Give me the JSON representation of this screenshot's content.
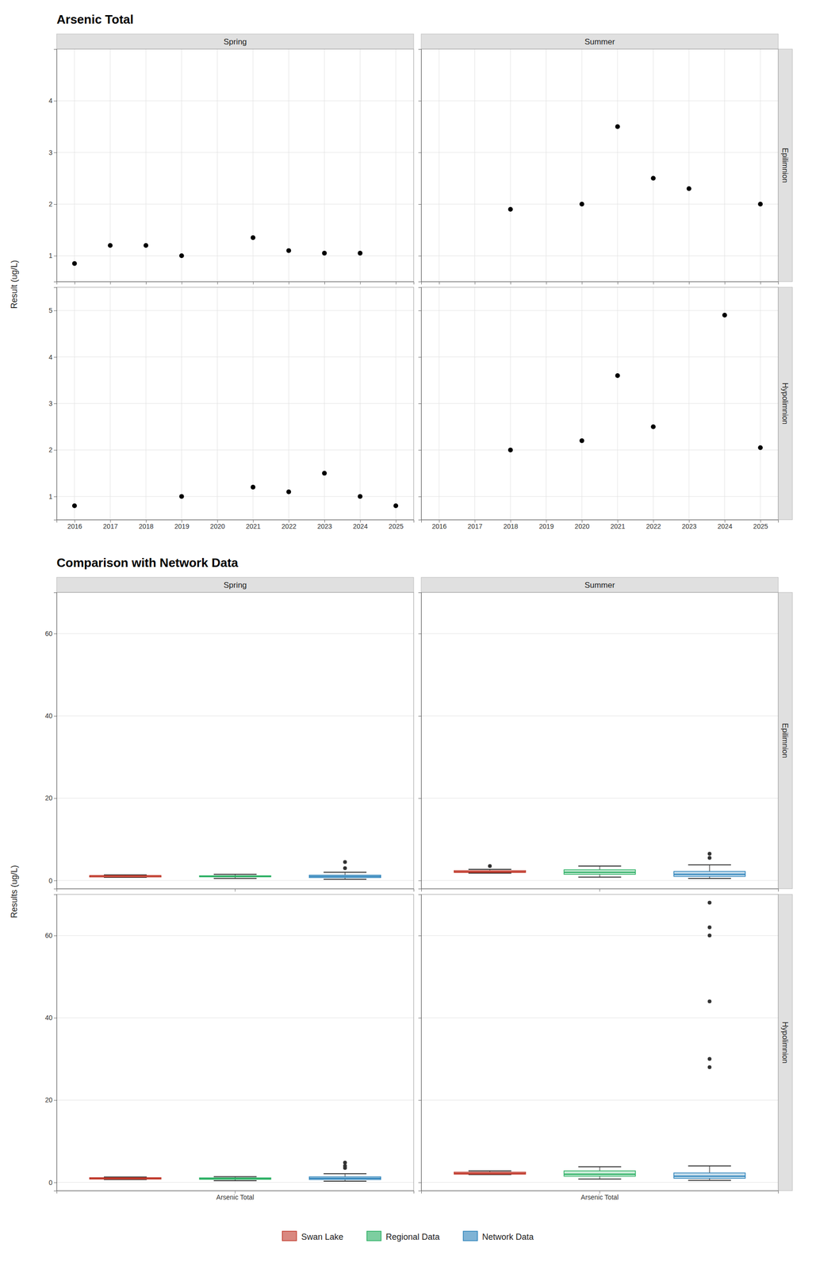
{
  "chart_data": [
    {
      "type": "scatter",
      "title": "Arsenic Total",
      "ylabel": "Result (ug/L)",
      "columns": [
        "Spring",
        "Summer"
      ],
      "rows": [
        {
          "name": "Epilimnion",
          "ylim": [
            0.5,
            5.0
          ],
          "yticks": [
            1,
            2,
            3,
            4
          ]
        },
        {
          "name": "Hypolimnion",
          "ylim": [
            0.5,
            5.5
          ],
          "yticks": [
            1,
            2,
            3,
            4,
            5
          ]
        }
      ],
      "xlim": [
        2015.5,
        2025.5
      ],
      "xticks": [
        2016,
        2017,
        2018,
        2019,
        2020,
        2021,
        2022,
        2023,
        2024,
        2025
      ],
      "color": "#000000",
      "grid": true,
      "panels": [
        [
          {
            "x": [
              2016,
              2017,
              2018,
              2019,
              2020,
              2021,
              2022,
              2023,
              2024,
              2025
            ],
            "values": [
              0.85,
              1.2,
              1.2,
              1.0,
              null,
              1.35,
              1.1,
              1.05,
              1.05,
              null
            ]
          },
          {
            "x": [
              2016,
              2017,
              2018,
              2019,
              2020,
              2021,
              2022,
              2023,
              2024,
              2025
            ],
            "values": [
              null,
              null,
              1.9,
              null,
              2.0,
              3.5,
              2.5,
              2.3,
              null,
              2.0
            ]
          }
        ],
        [
          {
            "x": [
              2016,
              2017,
              2018,
              2019,
              2020,
              2021,
              2022,
              2023,
              2024,
              2025
            ],
            "values": [
              0.8,
              null,
              null,
              1.0,
              null,
              1.2,
              1.1,
              1.5,
              1.0,
              0.8
            ]
          },
          {
            "x": [
              2016,
              2017,
              2018,
              2019,
              2020,
              2021,
              2022,
              2023,
              2024,
              2025
            ],
            "values": [
              null,
              null,
              2.0,
              null,
              2.2,
              3.6,
              2.5,
              null,
              4.9,
              2.05
            ]
          }
        ]
      ]
    },
    {
      "type": "box",
      "title": "Comparison with Network Data",
      "ylabel": "Results (ug/L)",
      "categories": [
        "Arsenic Total"
      ],
      "columns": [
        "Spring",
        "Summer"
      ],
      "rows": [
        "Epilimnion",
        "Hypolimnion"
      ],
      "ylim": [
        -2,
        70
      ],
      "yticks": [
        0,
        20,
        40,
        60
      ],
      "grid": true,
      "legend": "bottom",
      "series": [
        {
          "name": "Swan Lake",
          "color": "#c0392b"
        },
        {
          "name": "Regional Data",
          "color": "#27ae60"
        },
        {
          "name": "Network Data",
          "color": "#2980b9"
        }
      ],
      "panels": [
        [
          [
            {
              "median": 1.1,
              "q1": 0.85,
              "q3": 1.2,
              "whislo": 0.75,
              "whishi": 1.35,
              "fliers": []
            },
            {
              "median": 1.0,
              "q1": 0.9,
              "q3": 1.15,
              "whislo": 0.5,
              "whishi": 1.5,
              "fliers": []
            },
            {
              "median": 1.0,
              "q1": 0.7,
              "q3": 1.3,
              "whislo": 0.3,
              "whishi": 2.0,
              "fliers": [
                3.0,
                4.5
              ]
            }
          ],
          [
            {
              "median": 2.1,
              "q1": 1.95,
              "q3": 2.4,
              "whislo": 1.8,
              "whishi": 2.7,
              "fliers": [
                3.5
              ]
            },
            {
              "median": 2.0,
              "q1": 1.5,
              "q3": 2.6,
              "whislo": 0.8,
              "whishi": 3.5,
              "fliers": []
            },
            {
              "median": 1.5,
              "q1": 1.0,
              "q3": 2.2,
              "whislo": 0.5,
              "whishi": 3.8,
              "fliers": [
                5.5,
                6.5
              ]
            }
          ]
        ],
        [
          [
            {
              "median": 1.0,
              "q1": 0.8,
              "q3": 1.15,
              "whislo": 0.7,
              "whishi": 1.3,
              "fliers": []
            },
            {
              "median": 0.9,
              "q1": 0.75,
              "q3": 1.1,
              "whislo": 0.4,
              "whishi": 1.4,
              "fliers": []
            },
            {
              "median": 1.0,
              "q1": 0.7,
              "q3": 1.35,
              "whislo": 0.3,
              "whishi": 2.1,
              "fliers": [
                3.5,
                4.0,
                4.8
              ]
            }
          ],
          [
            {
              "median": 2.2,
              "q1": 2.0,
              "q3": 2.5,
              "whislo": 1.9,
              "whishi": 2.8,
              "fliers": []
            },
            {
              "median": 2.0,
              "q1": 1.5,
              "q3": 2.8,
              "whislo": 0.8,
              "whishi": 3.8,
              "fliers": []
            },
            {
              "median": 1.5,
              "q1": 1.0,
              "q3": 2.3,
              "whislo": 0.5,
              "whishi": 4.0,
              "fliers": [
                28.0,
                30.0,
                44.0,
                60.0,
                62.0,
                68.0
              ]
            }
          ]
        ]
      ]
    }
  ]
}
